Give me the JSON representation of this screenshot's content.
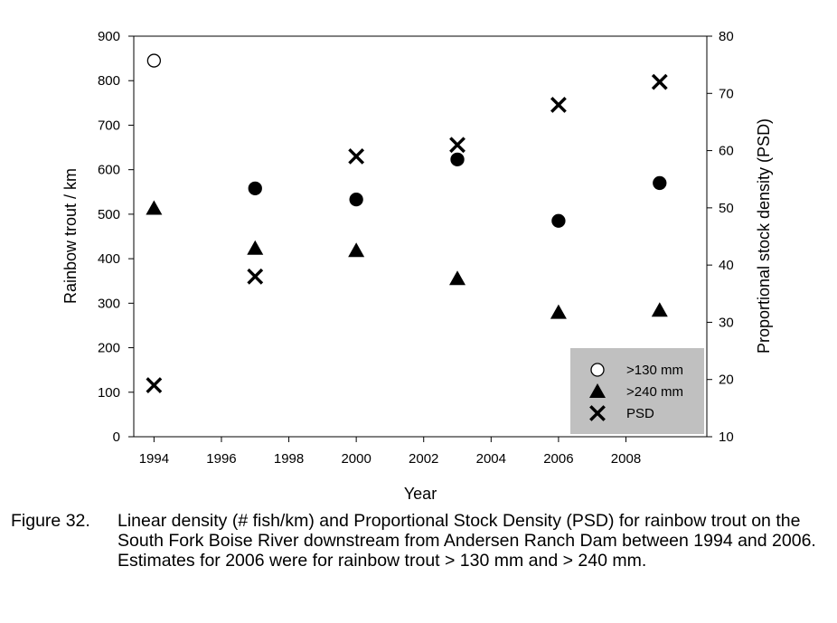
{
  "chart_data": {
    "type": "scatter",
    "title": "",
    "xlabel": "Year",
    "ylabel_left": "Rainbow trout / km",
    "ylabel_right": "Proportional stock density (PSD)",
    "xlim": [
      1993.4,
      2010.4
    ],
    "ylim_left": [
      0,
      900
    ],
    "ylim_right": [
      10,
      80
    ],
    "x_ticks": [
      1994,
      1996,
      1998,
      2000,
      2002,
      2004,
      2006,
      2008
    ],
    "y_ticks_left": [
      0,
      100,
      200,
      300,
      400,
      500,
      600,
      700,
      800,
      900
    ],
    "y_ticks_right": [
      10,
      20,
      30,
      40,
      50,
      60,
      70,
      80
    ],
    "grid": false,
    "legend_position": "bottom-right",
    "series": [
      {
        "name": ">130 mm",
        "axis": "left",
        "marker": "circle",
        "points": [
          {
            "x": 1994,
            "y": 845,
            "filled": false
          },
          {
            "x": 1997,
            "y": 558,
            "filled": true
          },
          {
            "x": 2000,
            "y": 533,
            "filled": true
          },
          {
            "x": 2003,
            "y": 623,
            "filled": true
          },
          {
            "x": 2006,
            "y": 485,
            "filled": true
          },
          {
            "x": 2009,
            "y": 570,
            "filled": true
          }
        ]
      },
      {
        "name": ">240 mm",
        "axis": "left",
        "marker": "triangle",
        "points": [
          {
            "x": 1994,
            "y": 513
          },
          {
            "x": 1997,
            "y": 423
          },
          {
            "x": 2000,
            "y": 418
          },
          {
            "x": 2003,
            "y": 355
          },
          {
            "x": 2006,
            "y": 279
          },
          {
            "x": 2009,
            "y": 284
          }
        ]
      },
      {
        "name": "PSD",
        "axis": "right",
        "marker": "x",
        "points": [
          {
            "x": 1994,
            "y": 19
          },
          {
            "x": 1997,
            "y": 38
          },
          {
            "x": 2000,
            "y": 59
          },
          {
            "x": 2003,
            "y": 61
          },
          {
            "x": 2006,
            "y": 68
          },
          {
            "x": 2009,
            "y": 72
          }
        ]
      }
    ]
  },
  "caption": {
    "label": "Figure 32.",
    "text": "Linear density (# fish/km) and Proportional Stock Density (PSD) for rainbow trout on the South Fork Boise River downstream from Andersen Ranch Dam between 1994 and 2006.  Estimates for 2006 were for rainbow trout > 130 mm and > 240 mm."
  }
}
